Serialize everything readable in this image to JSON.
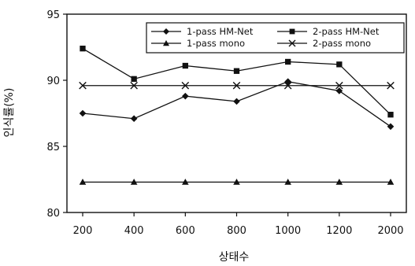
{
  "chart_data": {
    "type": "line",
    "categories": [
      "200",
      "400",
      "600",
      "800",
      "1000",
      "1200",
      "2000"
    ],
    "xlabel": "상태수",
    "ylabel": "인식률(%)",
    "ylim": [
      80,
      95
    ],
    "yticks": [
      80,
      85,
      90,
      95
    ],
    "grid": false,
    "legend": "top-right",
    "series": [
      {
        "name": "1-pass HM-Net",
        "marker": "diamond",
        "values": [
          87.5,
          87.1,
          88.8,
          88.4,
          89.9,
          89.2,
          86.5
        ]
      },
      {
        "name": "2-pass HM-Net",
        "marker": "square",
        "values": [
          92.4,
          90.1,
          91.1,
          90.7,
          91.4,
          91.2,
          87.4
        ]
      },
      {
        "name": "1-pass mono",
        "marker": "triangle",
        "values": [
          82.3,
          82.3,
          82.3,
          82.3,
          82.3,
          82.3,
          82.3
        ]
      },
      {
        "name": "2-pass mono",
        "marker": "x",
        "values": [
          89.6,
          89.6,
          89.6,
          89.6,
          89.6,
          89.6,
          89.6
        ]
      }
    ]
  }
}
